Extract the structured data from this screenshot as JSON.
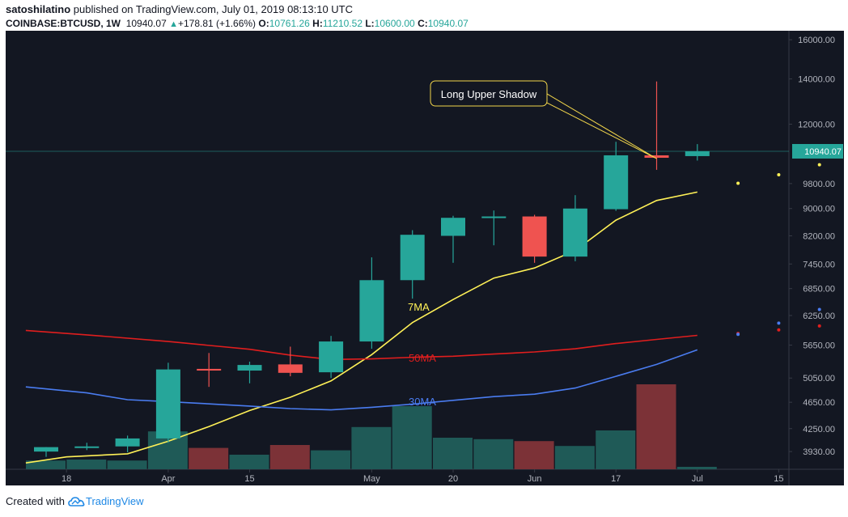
{
  "header": {
    "author": "satoshilatino",
    "published_text": " published on TradingView.com, July 01, 2019 08:13:10 UTC",
    "symbol": "COINBASE:BTCUSD, 1W",
    "last_price": "10940.07",
    "change": "+178.81 (+1.66%)",
    "o_label": "O:",
    "o_value": "10761.26",
    "h_label": "H:",
    "h_value": "11210.52",
    "l_label": "L:",
    "l_value": "10600.00",
    "c_label": "C:",
    "c_value": "10940.07"
  },
  "footer": {
    "created_with": "Created with",
    "brand": "TradingView"
  },
  "colors": {
    "background": "#131722",
    "up": "#26a69a",
    "down": "#ef5350",
    "ma7": "#fff157",
    "ma30": "#4a7cf0",
    "ma50": "#e01e1e",
    "vol_up": "#1f5a57",
    "vol_down": "#7c3237",
    "axis_bg": "#131722",
    "axis_text": "#b2b5be"
  },
  "chart_data": {
    "type": "candlestick",
    "title": "COINBASE:BTCUSD, 1W",
    "price_scale": "log",
    "ylim": [
      3700,
      16500
    ],
    "price_ticks": [
      "16000.00",
      "14000.00",
      "12000.00",
      "10940.07",
      "9800.00",
      "9000.00",
      "8200.00",
      "7450.00",
      "6850.00",
      "6250.00",
      "5650.00",
      "5050.00",
      "4650.00",
      "4250.00",
      "3930.00"
    ],
    "current_price": 10940.07,
    "x_labels": [
      {
        "index": 0.5,
        "label": "18"
      },
      {
        "index": 3,
        "label": "Apr"
      },
      {
        "index": 5,
        "label": "15"
      },
      {
        "index": 8,
        "label": "May"
      },
      {
        "index": 10,
        "label": "20"
      },
      {
        "index": 12,
        "label": "Jun"
      },
      {
        "index": 14,
        "label": "17"
      },
      {
        "index": 16,
        "label": "Jul"
      },
      {
        "index": 18,
        "label": "15"
      }
    ],
    "candles": [
      {
        "o": 3930,
        "h": 3990,
        "l": 3860,
        "c": 3990
      },
      {
        "o": 3990,
        "h": 4050,
        "l": 3950,
        "c": 4000
      },
      {
        "o": 4000,
        "h": 4150,
        "l": 3920,
        "c": 4110
      },
      {
        "o": 4110,
        "h": 5320,
        "l": 4050,
        "c": 5200
      },
      {
        "o": 5210,
        "h": 5500,
        "l": 4900,
        "c": 5180
      },
      {
        "o": 5180,
        "h": 5340,
        "l": 4960,
        "c": 5280
      },
      {
        "o": 5290,
        "h": 5620,
        "l": 5080,
        "c": 5140
      },
      {
        "o": 5150,
        "h": 5830,
        "l": 5050,
        "c": 5720
      },
      {
        "o": 5720,
        "h": 7620,
        "l": 5580,
        "c": 7050
      },
      {
        "o": 7050,
        "h": 8360,
        "l": 6620,
        "c": 8230
      },
      {
        "o": 8200,
        "h": 8780,
        "l": 7480,
        "c": 8720
      },
      {
        "o": 8720,
        "h": 8940,
        "l": 7940,
        "c": 8760
      },
      {
        "o": 8760,
        "h": 8810,
        "l": 7480,
        "c": 7640
      },
      {
        "o": 7640,
        "h": 9420,
        "l": 7520,
        "c": 9000
      },
      {
        "o": 8980,
        "h": 11300,
        "l": 8930,
        "c": 10790
      },
      {
        "o": 10790,
        "h": 13880,
        "l": 10270,
        "c": 10700
      },
      {
        "o": 10761.26,
        "h": 11210.52,
        "l": 10600,
        "c": 10940.07
      }
    ],
    "volume": [
      {
        "v": 18,
        "up": true
      },
      {
        "v": 20,
        "up": true
      },
      {
        "v": 18,
        "up": true
      },
      {
        "v": 78,
        "up": true
      },
      {
        "v": 44,
        "up": false
      },
      {
        "v": 30,
        "up": true
      },
      {
        "v": 50,
        "up": false
      },
      {
        "v": 39,
        "up": true
      },
      {
        "v": 87,
        "up": true
      },
      {
        "v": 130,
        "up": true
      },
      {
        "v": 65,
        "up": true
      },
      {
        "v": 62,
        "up": true
      },
      {
        "v": 58,
        "up": false
      },
      {
        "v": 48,
        "up": true
      },
      {
        "v": 80,
        "up": true
      },
      {
        "v": 175,
        "up": false
      },
      {
        "v": 5,
        "up": true
      }
    ],
    "series": [
      {
        "name": "7MA",
        "color": "#fff157",
        "points": [
          [
            -0.5,
            3780
          ],
          [
            0.5,
            3860
          ],
          [
            2,
            3900
          ],
          [
            3,
            4070
          ],
          [
            4,
            4280
          ],
          [
            5,
            4520
          ],
          [
            6,
            4730
          ],
          [
            7,
            5000
          ],
          [
            8,
            5470
          ],
          [
            9,
            6100
          ],
          [
            10,
            6600
          ],
          [
            11,
            7100
          ],
          [
            12,
            7350
          ],
          [
            13,
            7800
          ],
          [
            14,
            8650
          ],
          [
            15,
            9250
          ],
          [
            16,
            9520
          ]
        ],
        "forecast": [
          [
            17,
            9810
          ],
          [
            18,
            10100
          ],
          [
            19,
            10450
          ]
        ]
      },
      {
        "name": "50MA",
        "color": "#e01e1e",
        "points": [
          [
            -0.5,
            5940
          ],
          [
            1,
            5850
          ],
          [
            3,
            5720
          ],
          [
            5,
            5570
          ],
          [
            6,
            5460
          ],
          [
            7,
            5380
          ],
          [
            8,
            5390
          ],
          [
            9,
            5420
          ],
          [
            10,
            5440
          ],
          [
            11,
            5480
          ],
          [
            12,
            5520
          ],
          [
            13,
            5580
          ],
          [
            14,
            5680
          ],
          [
            15,
            5760
          ],
          [
            16,
            5840
          ]
        ],
        "forecast": [
          [
            17,
            5880
          ],
          [
            18,
            5950
          ],
          [
            19,
            6030
          ]
        ]
      },
      {
        "name": "30MA",
        "color": "#4a7cf0",
        "points": [
          [
            -0.5,
            4900
          ],
          [
            1,
            4800
          ],
          [
            2,
            4690
          ],
          [
            3,
            4660
          ],
          [
            5,
            4590
          ],
          [
            6,
            4550
          ],
          [
            7,
            4530
          ],
          [
            8,
            4570
          ],
          [
            9,
            4620
          ],
          [
            10,
            4680
          ],
          [
            11,
            4740
          ],
          [
            12,
            4780
          ],
          [
            13,
            4880
          ],
          [
            14,
            5080
          ],
          [
            15,
            5290
          ],
          [
            16,
            5560
          ]
        ],
        "forecast": [
          [
            17,
            5860
          ],
          [
            18,
            6090
          ],
          [
            19,
            6380
          ]
        ]
      }
    ],
    "annotations": [
      {
        "text": "Long Upper Shadow",
        "target_index": 15
      },
      {
        "text": "7MA"
      },
      {
        "text": "50MA"
      },
      {
        "text": "30MA"
      }
    ]
  }
}
